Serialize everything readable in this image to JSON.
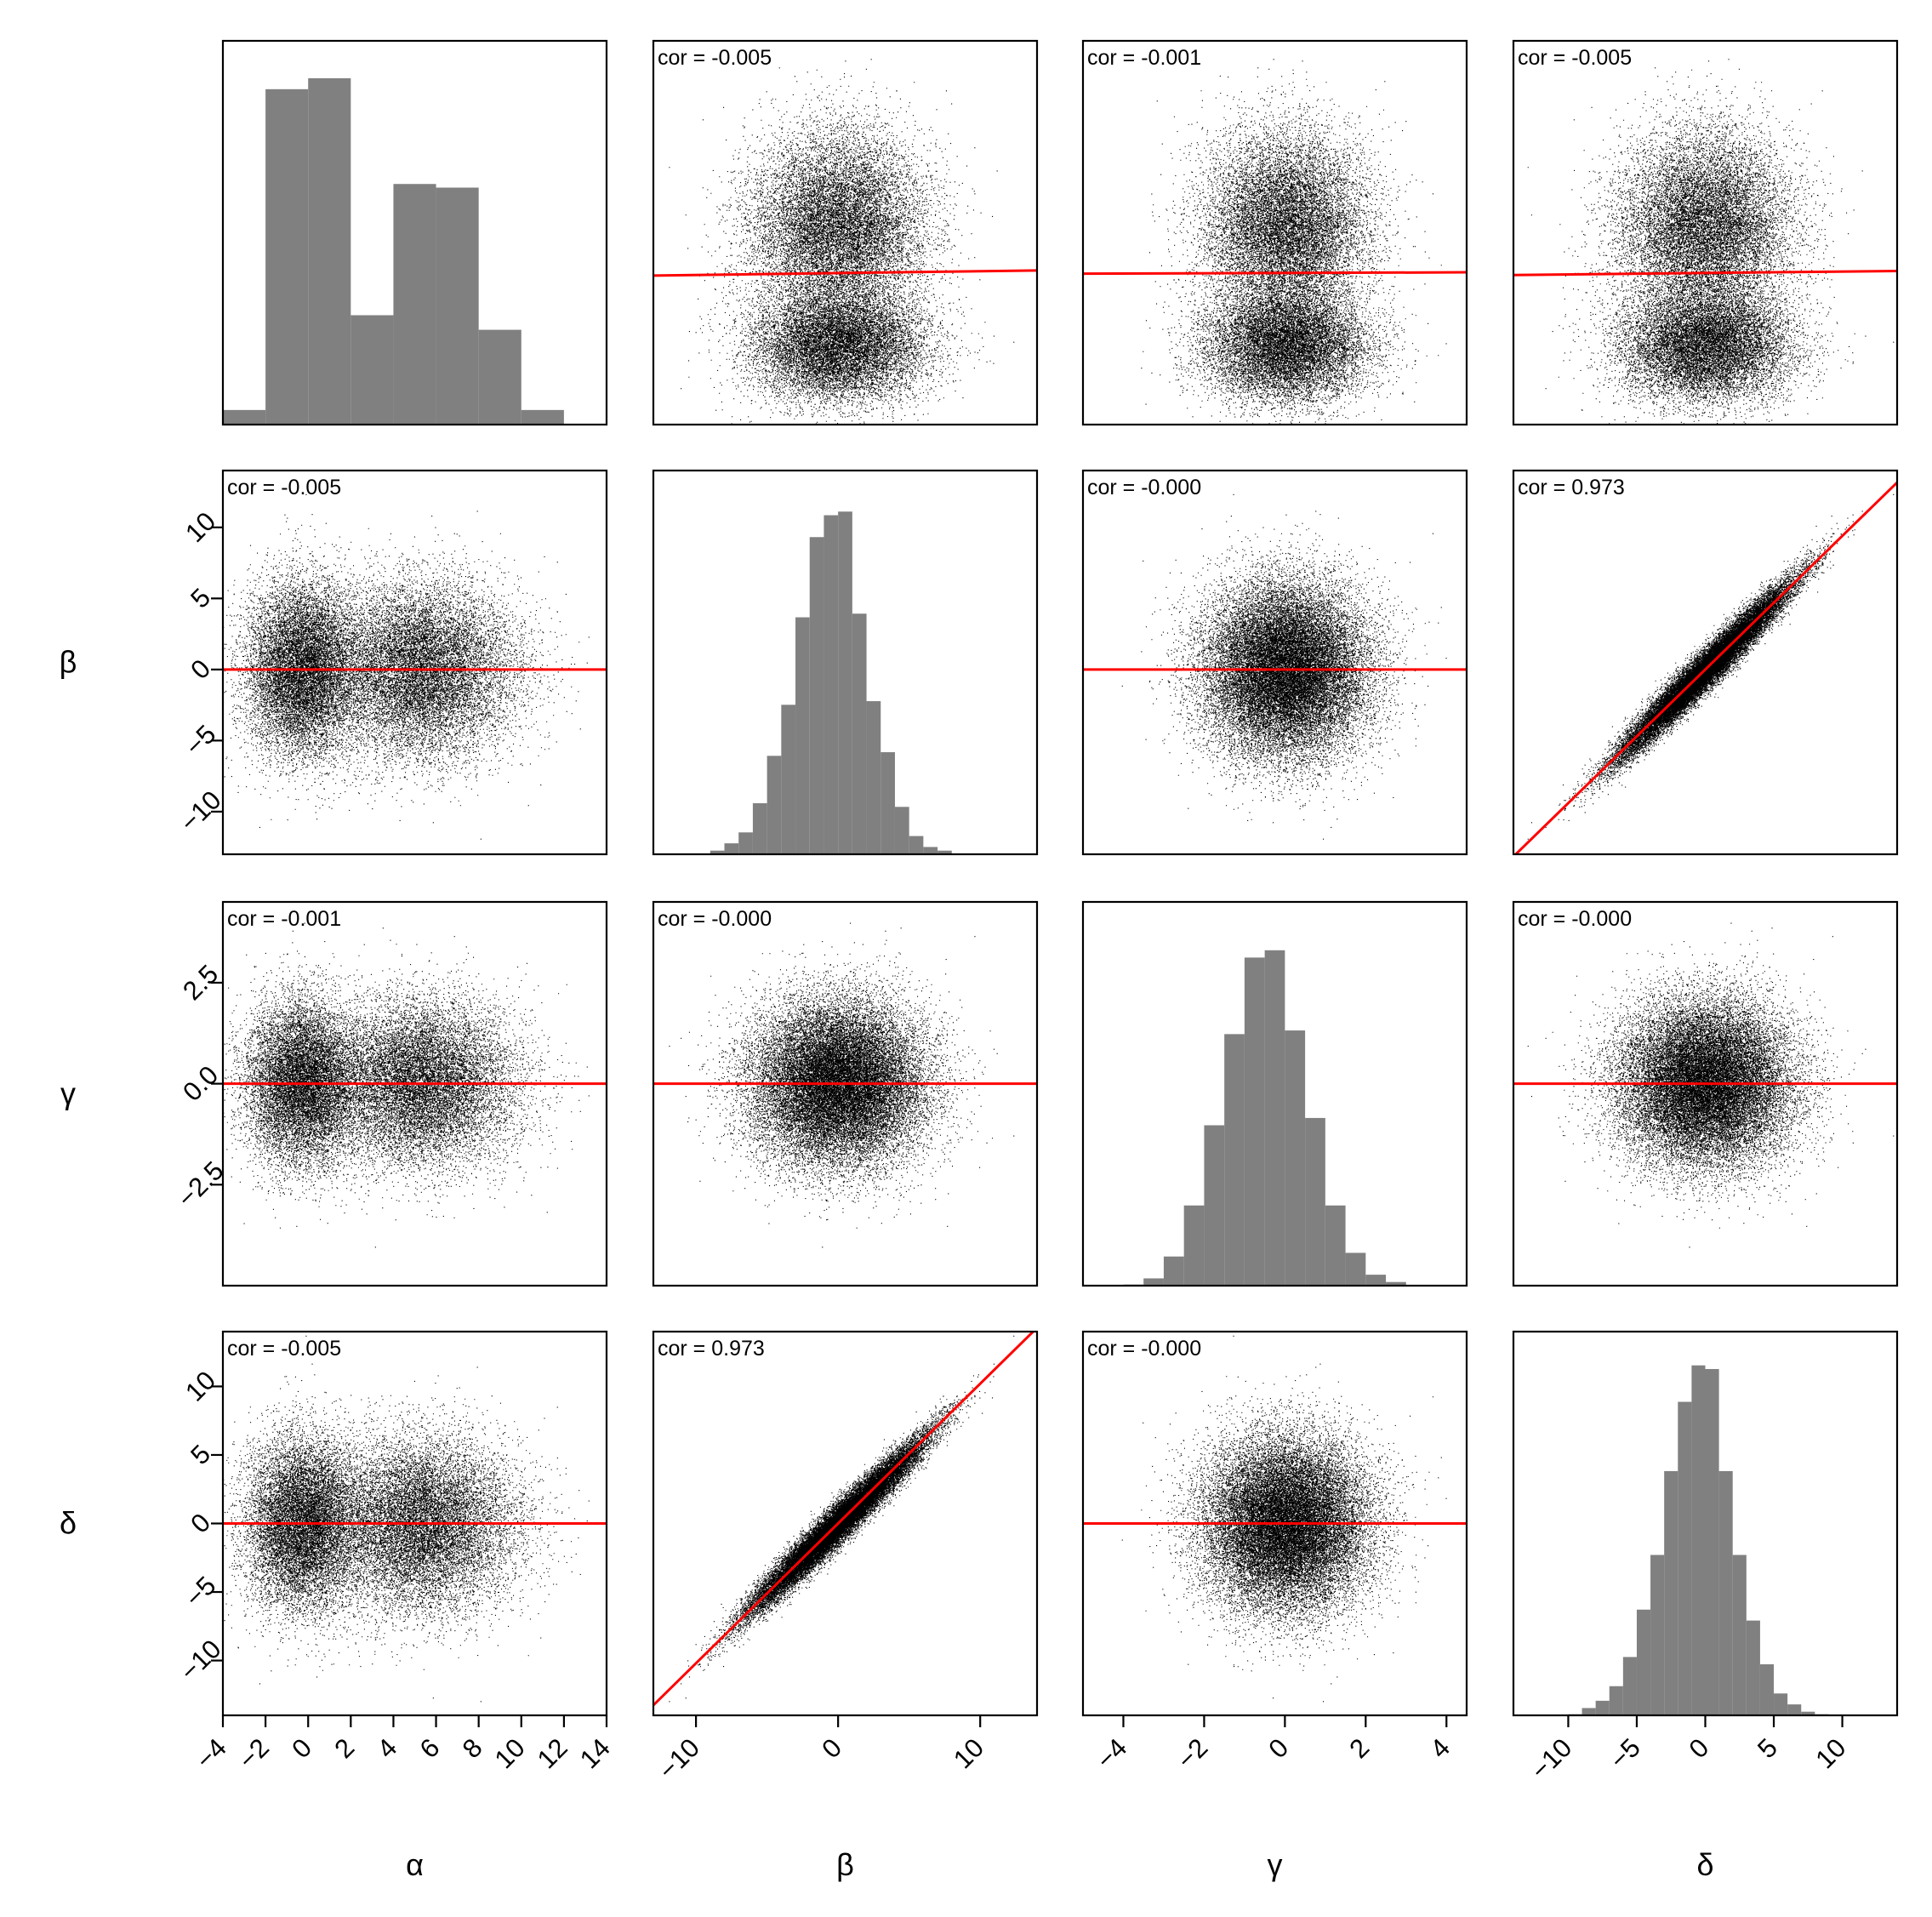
{
  "chart_data": {
    "type": "scatter-matrix",
    "title": "",
    "variables": [
      "α",
      "β",
      "γ",
      "δ"
    ],
    "axis_labels": {
      "x": [
        "α",
        "β",
        "γ",
        "δ"
      ],
      "y": [
        "",
        "β",
        "γ",
        "δ"
      ]
    },
    "ranges": {
      "α": [
        -4,
        14
      ],
      "β": [
        -13,
        14
      ],
      "γ": [
        -5,
        4.5
      ],
      "δ": [
        -14,
        14
      ]
    },
    "ticks": {
      "α": [
        -4,
        -2,
        0,
        2,
        4,
        6,
        8,
        10,
        12,
        14
      ],
      "β": [
        -10,
        -5,
        0,
        5,
        10
      ],
      "β_x": [
        -10,
        0,
        10
      ],
      "γ": [
        -2.5,
        0.0,
        2.5
      ],
      "γ_x": [
        -4,
        -2,
        0,
        2,
        4
      ],
      "δ": [
        -10,
        -5,
        0,
        5,
        10
      ]
    },
    "tick_labels": {
      "α": [
        "−4",
        "−2",
        "0",
        "2",
        "4",
        "6",
        "8",
        "10",
        "12",
        "14"
      ],
      "β_y": [
        "−10",
        "−5",
        "0",
        "5",
        "10"
      ],
      "β_x": [
        "−10",
        "0",
        "10"
      ],
      "γ_y": [
        "−2.5",
        "0.0",
        "2.5"
      ],
      "γ_x": [
        "−4",
        "−2",
        "0",
        "2",
        "4"
      ],
      "δ": [
        "−10",
        "−5",
        "0",
        "5",
        "10"
      ]
    },
    "correlation_labels": [
      [
        "",
        "cor = -0.005",
        "cor = -0.001",
        "cor = -0.005"
      ],
      [
        "cor = -0.005",
        "",
        "cor = -0.000",
        "cor = 0.973"
      ],
      [
        "cor = -0.001",
        "cor = -0.000",
        "",
        "cor = -0.000"
      ],
      [
        "cor = -0.005",
        "cor = 0.973",
        "cor = -0.000",
        ""
      ]
    ],
    "regression_slopes": {
      "0-1": -0.0015,
      "0-2": -0.0004,
      "0-3": -0.0012,
      "1-0": 0,
      "1-2": 0,
      "1-3": 0.94,
      "2-0": 0,
      "2-1": 0,
      "2-3": 0,
      "3-0": 0,
      "3-1": 1.02,
      "3-2": 0
    },
    "histograms": {
      "α": {
        "bins": [
          -4,
          -2,
          0,
          2,
          4,
          6,
          8,
          10,
          12
        ],
        "counts": [
          0.04,
          0.92,
          0.95,
          0.3,
          0.66,
          0.65,
          0.26,
          0.04
        ]
      },
      "β": {
        "bins": [
          -10,
          -9,
          -8,
          -7,
          -6,
          -5,
          -4,
          -3,
          -2,
          -1,
          0,
          1,
          2,
          3,
          4,
          5,
          6,
          7,
          8,
          9
        ],
        "counts": [
          0.002,
          0.01,
          0.03,
          0.06,
          0.14,
          0.27,
          0.41,
          0.65,
          0.87,
          0.93,
          0.94,
          0.66,
          0.42,
          0.28,
          0.13,
          0.05,
          0.02,
          0.01,
          0.002
        ]
      },
      "γ": {
        "bins": [
          -4,
          -3.5,
          -3,
          -2.5,
          -2,
          -1.5,
          -1,
          -0.5,
          0,
          0.5,
          1,
          1.5,
          2,
          2.5,
          3,
          3.5
        ],
        "counts": [
          0.003,
          0.02,
          0.08,
          0.22,
          0.44,
          0.69,
          0.9,
          0.92,
          0.7,
          0.46,
          0.22,
          0.09,
          0.03,
          0.01,
          0.002
        ]
      },
      "δ": {
        "bins": [
          -10,
          -9,
          -8,
          -7,
          -6,
          -5,
          -4,
          -3,
          -2,
          -1,
          0,
          1,
          2,
          3,
          4,
          5,
          6,
          7,
          8,
          9
        ],
        "counts": [
          0.003,
          0.02,
          0.04,
          0.08,
          0.16,
          0.29,
          0.44,
          0.67,
          0.86,
          0.96,
          0.95,
          0.67,
          0.44,
          0.26,
          0.14,
          0.06,
          0.03,
          0.01,
          0.003
        ]
      }
    },
    "distributions": {
      "α_mixture": [
        {
          "weight": 0.47,
          "mean": -0.3,
          "sd": 1.3
        },
        {
          "weight": 0.53,
          "mean": 5.3,
          "sd": 2.2
        }
      ],
      "β": {
        "mean": 0,
        "sd": 3.0
      },
      "γ": {
        "mean": 0,
        "sd": 1.0
      },
      "δ": {
        "mean": 0,
        "sd": 3.1
      }
    },
    "colors": {
      "points": "#000000",
      "regression_line": "#ff0000",
      "histogram_bar": "#808080",
      "frame": "#000000"
    },
    "grid": false,
    "legend": "none"
  }
}
